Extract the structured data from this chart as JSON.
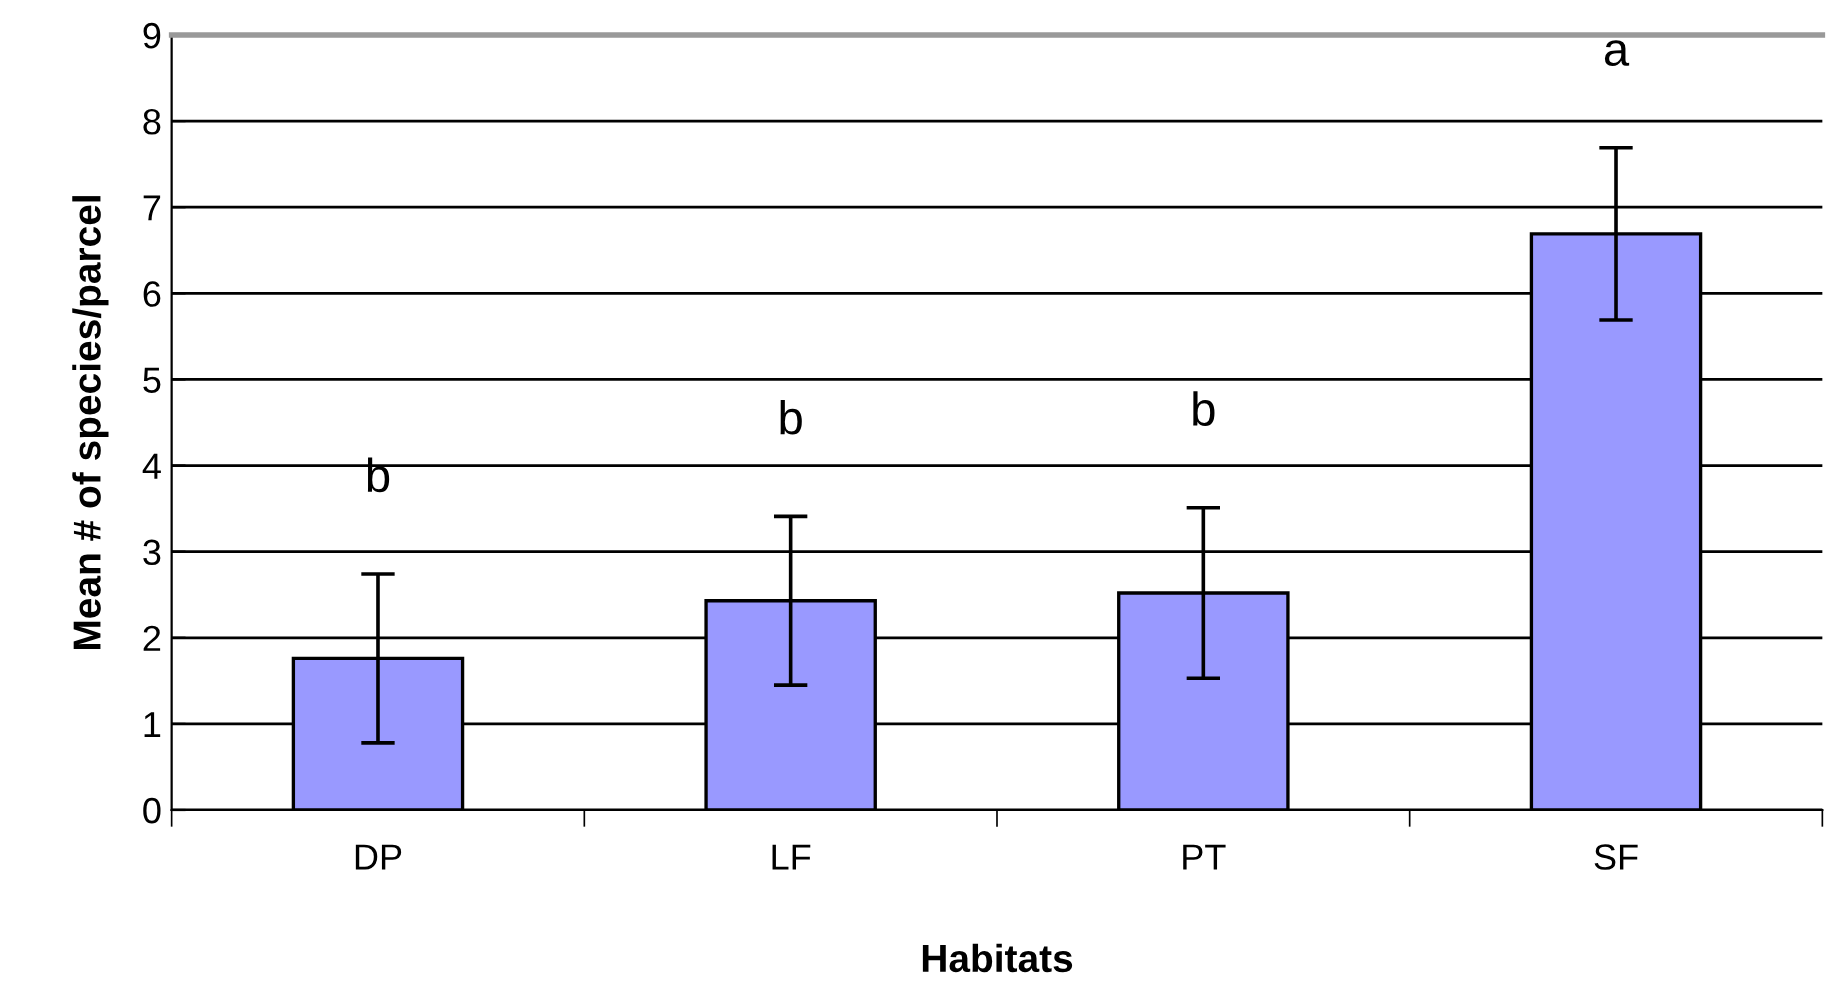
{
  "chart_data": {
    "type": "bar",
    "xlabel": "Habitats",
    "ylabel": "Mean # of species/parcel",
    "categories": [
      "DP",
      "LF",
      "PT",
      "SF"
    ],
    "values": [
      1.76,
      2.43,
      2.52,
      6.69
    ],
    "errors": [
      0.98,
      0.98,
      0.99,
      1.0
    ],
    "color": "#9999ff",
    "ylim": [
      0,
      9
    ],
    "yticks": [
      0,
      1,
      2,
      3,
      4,
      5,
      6,
      7,
      8,
      9
    ],
    "grid": "y",
    "annotations": [
      "b",
      "b",
      "b",
      "a"
    ]
  }
}
